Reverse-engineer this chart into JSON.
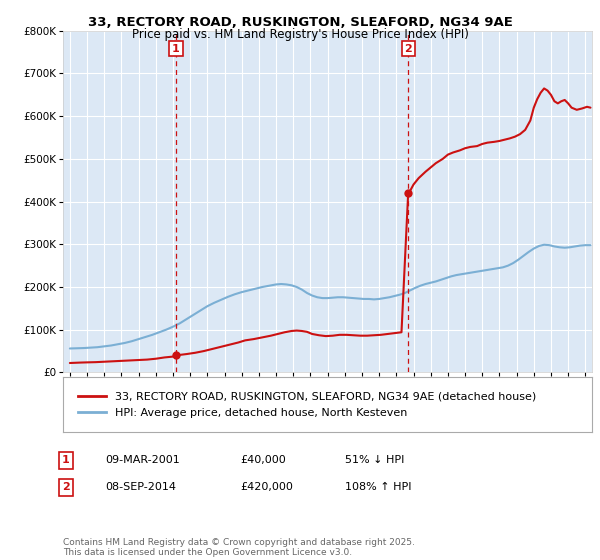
{
  "title": "33, RECTORY ROAD, RUSKINGTON, SLEAFORD, NG34 9AE",
  "subtitle": "Price paid vs. HM Land Registry's House Price Index (HPI)",
  "red_line_label": "33, RECTORY ROAD, RUSKINGTON, SLEAFORD, NG34 9AE (detached house)",
  "blue_line_label": "HPI: Average price, detached house, North Kesteven",
  "sale1_date": "09-MAR-2001",
  "sale1_price": "£40,000",
  "sale1_hpi": "51% ↓ HPI",
  "sale2_date": "08-SEP-2014",
  "sale2_price": "£420,000",
  "sale2_hpi": "108% ↑ HPI",
  "footnote": "Contains HM Land Registry data © Crown copyright and database right 2025.\nThis data is licensed under the Open Government Licence v3.0.",
  "ylim": [
    0,
    800000
  ],
  "xlim_start": 1994.6,
  "xlim_end": 2025.4,
  "vline1_x": 2001.18,
  "vline2_x": 2014.69,
  "sale1_x": 2001.18,
  "sale1_y": 40000,
  "sale2_x": 2014.69,
  "sale2_y": 420000,
  "red_color": "#cc1111",
  "blue_color": "#7bafd4",
  "vline_color": "#cc1111",
  "figure_bg": "#ffffff",
  "plot_bg_color": "#dce8f5",
  "grid_color": "#ffffff",
  "legend_border_color": "#aaaaaa",
  "title_fontsize": 9.5,
  "subtitle_fontsize": 8.5,
  "axis_fontsize": 7.5,
  "legend_fontsize": 8,
  "footnote_fontsize": 6.5,
  "years_red": [
    1995.0,
    1995.3,
    1995.6,
    1996.0,
    1996.5,
    1997.0,
    1997.5,
    1998.0,
    1998.5,
    1999.0,
    1999.5,
    2000.0,
    2000.5,
    2001.0,
    2001.18,
    2001.4,
    2001.8,
    2002.3,
    2002.8,
    2003.3,
    2003.8,
    2004.3,
    2004.8,
    2005.2,
    2005.7,
    2006.2,
    2006.7,
    2007.1,
    2007.5,
    2007.9,
    2008.2,
    2008.5,
    2008.8,
    2009.1,
    2009.5,
    2009.9,
    2010.3,
    2010.7,
    2011.1,
    2011.5,
    2011.9,
    2012.3,
    2012.7,
    2013.1,
    2013.5,
    2013.9,
    2014.3,
    2014.69,
    2014.8,
    2015.0,
    2015.3,
    2015.7,
    2016.0,
    2016.3,
    2016.7,
    2017.0,
    2017.3,
    2017.7,
    2018.0,
    2018.3,
    2018.7,
    2019.0,
    2019.3,
    2019.7,
    2020.0,
    2020.3,
    2020.6,
    2020.9,
    2021.2,
    2021.5,
    2021.8,
    2022.0,
    2022.2,
    2022.4,
    2022.6,
    2022.8,
    2023.0,
    2023.2,
    2023.4,
    2023.6,
    2023.8,
    2024.0,
    2024.2,
    2024.5,
    2024.8,
    2025.1,
    2025.3
  ],
  "vals_red": [
    22000,
    22500,
    23000,
    23500,
    24000,
    25000,
    26000,
    27000,
    28000,
    29000,
    30000,
    32000,
    35000,
    37000,
    40000,
    41000,
    43000,
    46000,
    50000,
    55000,
    60000,
    65000,
    70000,
    75000,
    78000,
    82000,
    86000,
    90000,
    94000,
    97000,
    98000,
    97000,
    95000,
    90000,
    87000,
    85000,
    86000,
    88000,
    88000,
    87000,
    86000,
    86000,
    87000,
    88000,
    90000,
    92000,
    94000,
    420000,
    425000,
    440000,
    455000,
    470000,
    480000,
    490000,
    500000,
    510000,
    515000,
    520000,
    525000,
    528000,
    530000,
    535000,
    538000,
    540000,
    542000,
    545000,
    548000,
    552000,
    558000,
    568000,
    590000,
    620000,
    640000,
    655000,
    665000,
    660000,
    650000,
    635000,
    630000,
    635000,
    638000,
    630000,
    620000,
    615000,
    618000,
    622000,
    620000
  ],
  "years_blue": [
    1995.0,
    1995.4,
    1995.8,
    1996.2,
    1996.6,
    1997.0,
    1997.4,
    1997.8,
    1998.2,
    1998.6,
    1999.0,
    1999.4,
    1999.8,
    2000.2,
    2000.6,
    2001.0,
    2001.4,
    2001.8,
    2002.2,
    2002.6,
    2003.0,
    2003.4,
    2003.8,
    2004.2,
    2004.6,
    2005.0,
    2005.4,
    2005.8,
    2006.2,
    2006.6,
    2007.0,
    2007.3,
    2007.6,
    2007.9,
    2008.2,
    2008.5,
    2008.8,
    2009.1,
    2009.4,
    2009.7,
    2010.0,
    2010.3,
    2010.6,
    2010.9,
    2011.2,
    2011.5,
    2011.8,
    2012.1,
    2012.4,
    2012.7,
    2013.0,
    2013.3,
    2013.6,
    2013.9,
    2014.2,
    2014.5,
    2014.8,
    2015.1,
    2015.4,
    2015.7,
    2016.0,
    2016.3,
    2016.6,
    2016.9,
    2017.2,
    2017.5,
    2017.8,
    2018.1,
    2018.4,
    2018.7,
    2019.0,
    2019.3,
    2019.6,
    2019.9,
    2020.2,
    2020.5,
    2020.8,
    2021.1,
    2021.4,
    2021.7,
    2022.0,
    2022.3,
    2022.6,
    2022.9,
    2023.2,
    2023.5,
    2023.8,
    2024.1,
    2024.4,
    2024.7,
    2025.0,
    2025.3
  ],
  "vals_blue": [
    56000,
    56500,
    57000,
    58000,
    59000,
    61000,
    63000,
    66000,
    69000,
    73000,
    78000,
    83000,
    88000,
    94000,
    100000,
    107000,
    115000,
    125000,
    135000,
    145000,
    155000,
    163000,
    170000,
    177000,
    183000,
    188000,
    192000,
    196000,
    200000,
    203000,
    206000,
    207000,
    206000,
    204000,
    200000,
    194000,
    186000,
    180000,
    176000,
    174000,
    174000,
    175000,
    176000,
    176000,
    175000,
    174000,
    173000,
    172000,
    172000,
    171000,
    172000,
    174000,
    176000,
    179000,
    182000,
    186000,
    192000,
    198000,
    203000,
    207000,
    210000,
    213000,
    217000,
    221000,
    225000,
    228000,
    230000,
    232000,
    234000,
    236000,
    238000,
    240000,
    242000,
    244000,
    246000,
    250000,
    256000,
    264000,
    273000,
    282000,
    290000,
    296000,
    299000,
    298000,
    295000,
    293000,
    292000,
    293000,
    295000,
    297000,
    298000,
    298000
  ]
}
